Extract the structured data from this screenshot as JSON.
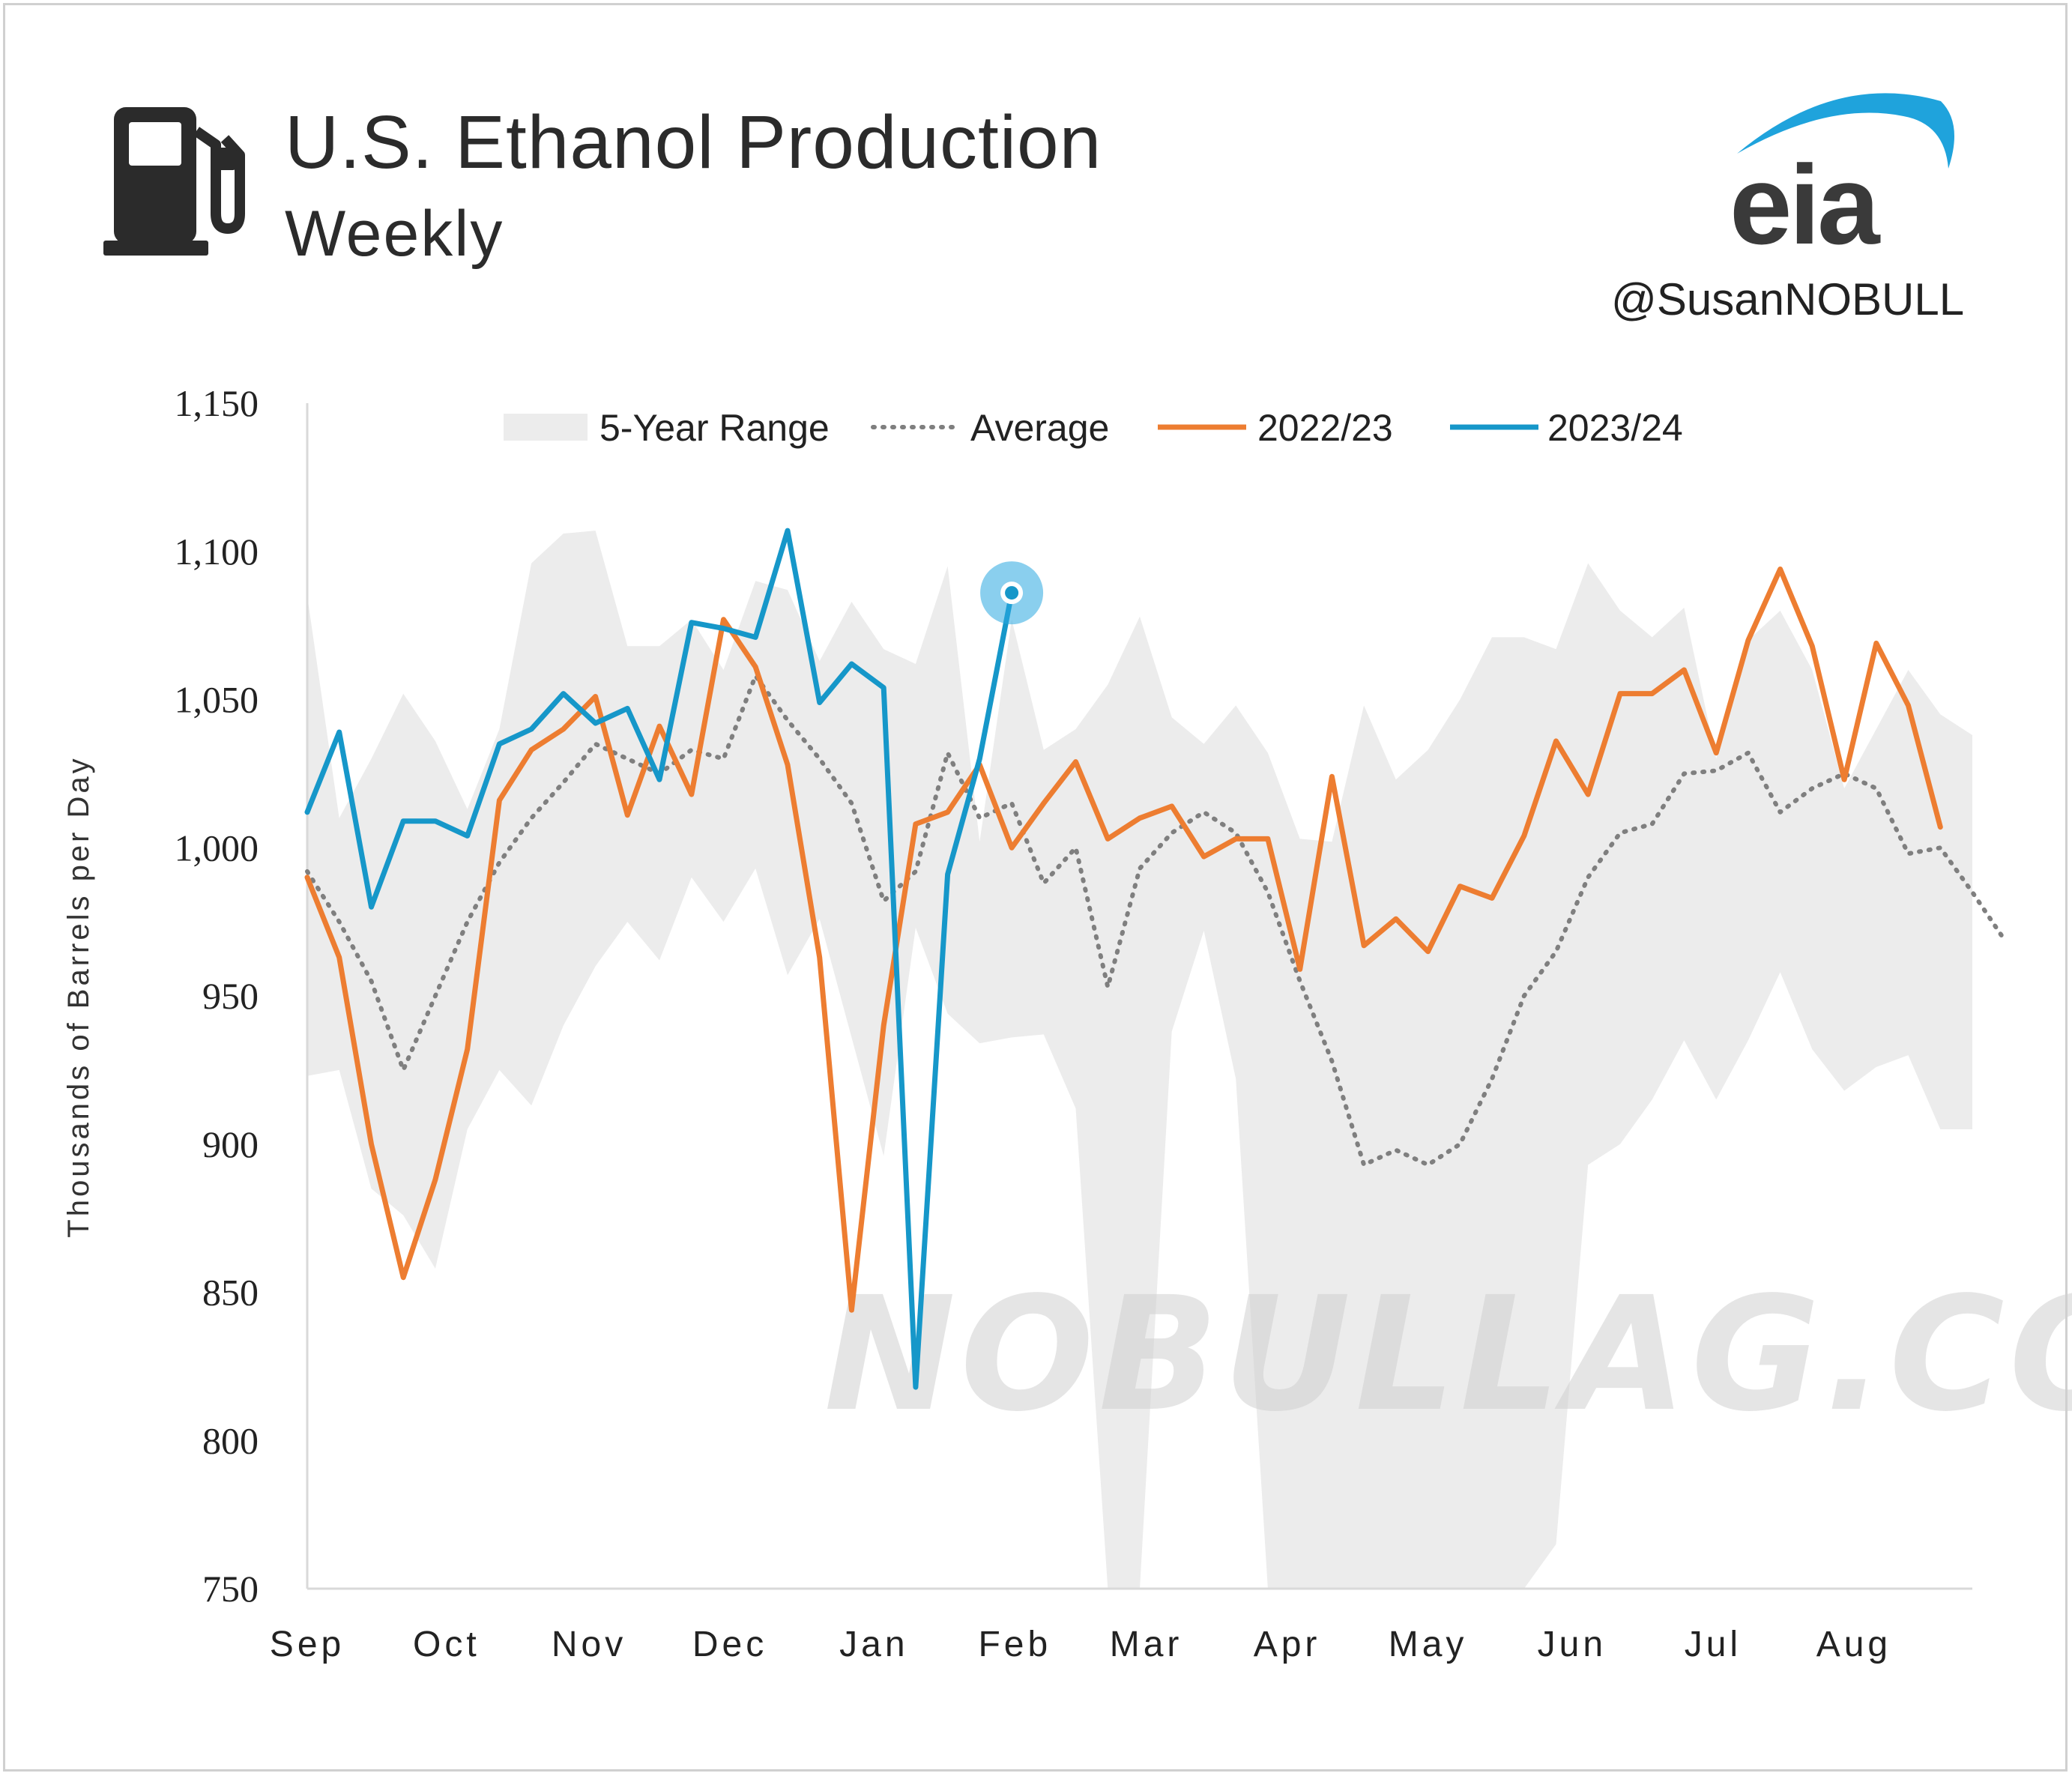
{
  "header": {
    "title": "U.S. Ethanol Production",
    "subtitle": "Weekly",
    "logo_text": "eia",
    "handle": "@SusanNOBULL",
    "icon": "fuel-pump-icon"
  },
  "watermark": "NOBULLAG.COM",
  "colors": {
    "range": "#ececec",
    "average": "#7f7f7f",
    "series_2022_23": "#ed7d31",
    "series_2023_24": "#1697c9",
    "accent_blue": "#29a8e0",
    "text": "#2b2b2b"
  },
  "chart_data": {
    "type": "line",
    "title": "U.S. Ethanol Production",
    "subtitle": "Weekly",
    "ylabel": "Thousands of Barrels per Day",
    "xlabel": "",
    "ylim": [
      750,
      1150
    ],
    "y_ticks": [
      "750",
      "800",
      "850",
      "900",
      "950",
      "1,000",
      "1,050",
      "1,100",
      "1,150"
    ],
    "y_tick_values": [
      750,
      800,
      850,
      900,
      950,
      1000,
      1050,
      1100,
      1150
    ],
    "x_range_weeks": [
      0,
      52
    ],
    "month_labels": [
      "Sep",
      "Oct",
      "Nov",
      "Dec",
      "Jan",
      "Feb",
      "Mar",
      "Apr",
      "May",
      "Jun",
      "Jul",
      "Aug"
    ],
    "month_week_positions": [
      0,
      4.35,
      8.8,
      13.2,
      17.7,
      22.1,
      26.2,
      30.6,
      35.0,
      39.5,
      43.9,
      48.3
    ],
    "grid": false,
    "legend_position": "top",
    "legend": [
      "5-Year Range",
      "Average",
      "2022/23",
      "2023/24"
    ],
    "range": {
      "name": "5-Year Range",
      "high": [
        1085,
        1010,
        1030,
        1052,
        1036,
        1013,
        1040,
        1096,
        1106,
        1107,
        1068,
        1068,
        1077,
        1060,
        1090,
        1087,
        1063,
        1083,
        1067,
        1062,
        1095,
        1002,
        1077,
        1033,
        1040,
        1055,
        1078,
        1044,
        1035,
        1048,
        1032,
        1003,
        1002,
        1048,
        1023,
        1033,
        1050,
        1071,
        1071,
        1067,
        1096,
        1080,
        1071,
        1081,
        1030,
        1070,
        1080,
        1060,
        1020,
        1040,
        1060,
        1045,
        1038
      ],
      "low": [
        923,
        925,
        885,
        876,
        858,
        905,
        925,
        913,
        940,
        960,
        975,
        962,
        990,
        975,
        993,
        957,
        976,
        936,
        896,
        973,
        944,
        934,
        936,
        937,
        912,
        750,
        750,
        938,
        972,
        922,
        750,
        750,
        750,
        750,
        750,
        750,
        750,
        750,
        750,
        765,
        893,
        900,
        915,
        935,
        915,
        935,
        958,
        932,
        918,
        926,
        930,
        905,
        905
      ]
    },
    "series": [
      {
        "name": "Average",
        "values": [
          992,
          975,
          955,
          925,
          950,
          975,
          995,
          1010,
          1022,
          1035,
          1030,
          1025,
          1033,
          1030,
          1058,
          1043,
          1030,
          1015,
          982,
          992,
          1032,
          1010,
          1015,
          988,
          1000,
          953,
          993,
          1005,
          1012,
          1005,
          985,
          955,
          928,
          893,
          898,
          893,
          900,
          922,
          950,
          965,
          990,
          1005,
          1008,
          1025,
          1026,
          1032,
          1012,
          1020,
          1025,
          1020,
          998,
          1000,
          985,
          969
        ]
      },
      {
        "name": "2022/23",
        "values": [
          990,
          963,
          900,
          855,
          888,
          932,
          1016,
          1033,
          1040,
          1051,
          1011,
          1041,
          1018,
          1077,
          1061,
          1028,
          963,
          844,
          940,
          1008,
          1012,
          1028,
          1000,
          1015,
          1029,
          1003,
          1010,
          1014,
          997,
          1003,
          1003,
          959,
          1024,
          967,
          976,
          965,
          987,
          983,
          1004,
          1036,
          1018,
          1052,
          1052,
          1060,
          1032,
          1070,
          1094,
          1068,
          1023,
          1069,
          1048,
          1007
        ]
      },
      {
        "name": "2023/24",
        "values": [
          1012,
          1039,
          980,
          1009,
          1009,
          1004,
          1035,
          1040,
          1052,
          1042,
          1047,
          1023,
          1076,
          1074,
          1071,
          1107,
          1049,
          1062,
          1054,
          818,
          991,
          1030,
          1086
        ]
      }
    ],
    "latest_point": {
      "series": "2023/24",
      "week": 22,
      "value": 1086
    }
  }
}
